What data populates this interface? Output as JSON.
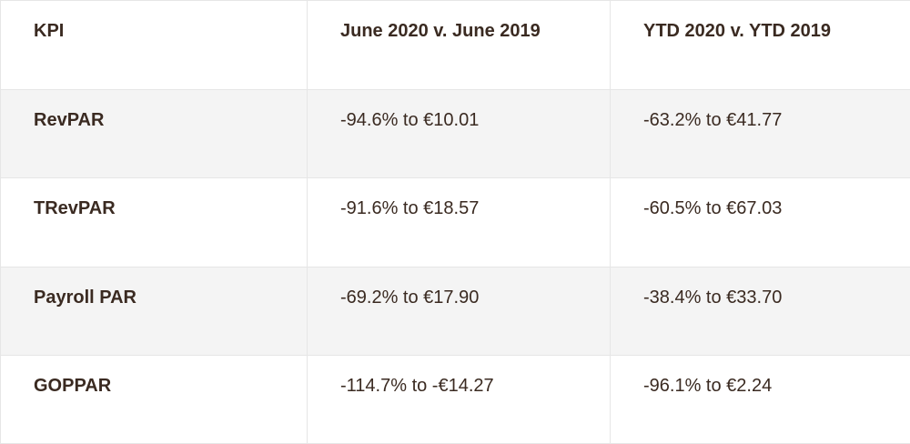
{
  "table": {
    "headers": [
      "KPI",
      "June 2020 v. June 2019",
      "YTD 2020 v. YTD 2019"
    ],
    "rows": [
      {
        "kpi": "RevPAR",
        "june": "-94.6% to €10.01",
        "ytd": "-63.2% to €41.77"
      },
      {
        "kpi": "TRevPAR",
        "june": "-91.6% to €18.57",
        "ytd": "-60.5% to €67.03"
      },
      {
        "kpi": "Payroll PAR",
        "june": "-69.2% to €17.90",
        "ytd": "-38.4% to €33.70"
      },
      {
        "kpi": "GOPPAR",
        "june": "-114.7% to -€14.27",
        "ytd": "-96.1% to €2.24"
      }
    ]
  },
  "colors": {
    "text": "#3a2a21",
    "row_shade": "#f4f4f4",
    "border": "#e6e6e6"
  }
}
